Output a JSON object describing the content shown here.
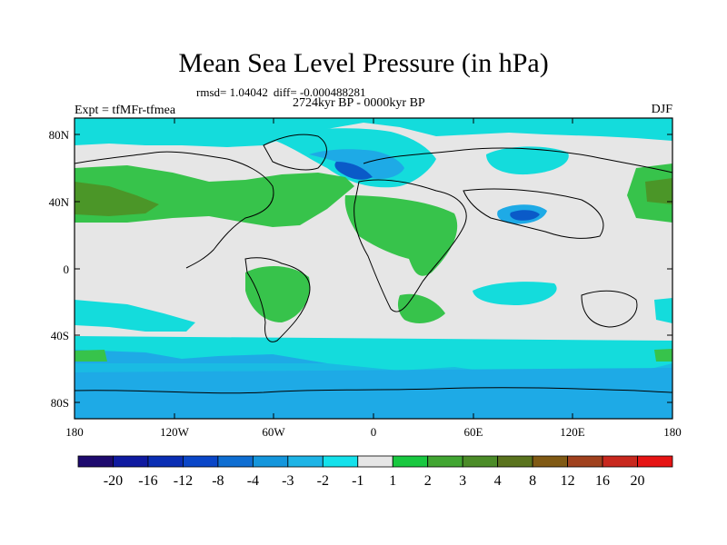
{
  "header": {
    "title": "Mean Sea Level Pressure (in hPa)",
    "rmsd": "rmsd= 1.04042",
    "diff": "diff= -0.000488281",
    "experiment": "Expt = tfMFr-tfmea",
    "period": "2724kyr BP - 0000kyr BP",
    "season": "DJF"
  },
  "axes": {
    "y_ticks": [
      "80N",
      "40N",
      "0",
      "40S",
      "80S"
    ],
    "x_ticks": [
      "180",
      "120W",
      "60W",
      "0",
      "60E",
      "120E",
      "180"
    ]
  },
  "colorbar": {
    "colors": [
      "#1e0a6e",
      "#0f1aa0",
      "#0a2eb4",
      "#0a46c8",
      "#0f6ed2",
      "#1496dc",
      "#1eb4e6",
      "#14e1eb",
      "#e6e6e6",
      "#19c840",
      "#41a532",
      "#4b8c28",
      "#5a731e",
      "#805a14",
      "#a0411e",
      "#c8281e",
      "#e61414"
    ],
    "labels": [
      "-20",
      "-16",
      "-12",
      "-8",
      "-4",
      "-3",
      "-2",
      "-1",
      "1",
      "2",
      "3",
      "4",
      "8",
      "12",
      "16",
      "20"
    ]
  },
  "map_colors": {
    "neutral": "#e6e6e6",
    "light_negative": "#14dcdc",
    "negative": "#1eaae6",
    "strong_negative": "#0a5ac8",
    "light_positive": "#37c34b",
    "positive": "#4b9628",
    "strong_positive": "#5a7d28"
  }
}
